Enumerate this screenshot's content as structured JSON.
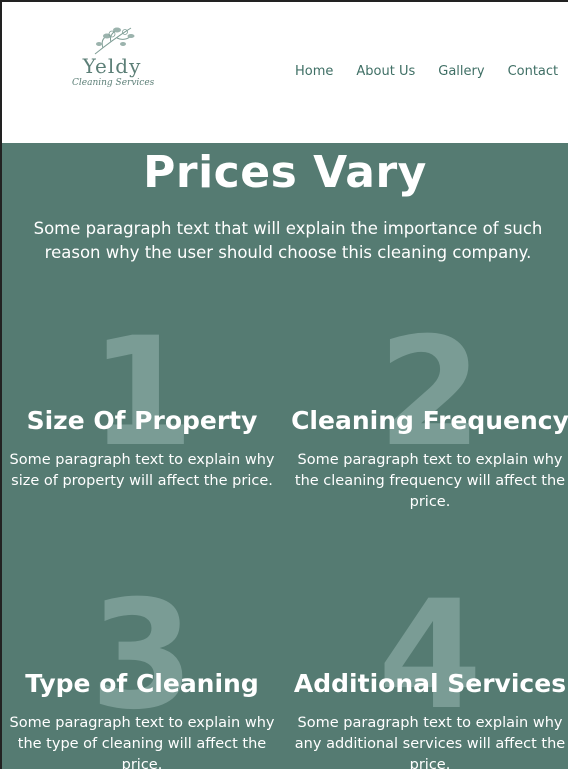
{
  "brand": {
    "name": "Yeldy",
    "tagline": "Cleaning Services"
  },
  "nav": {
    "items": [
      {
        "label": "Home"
      },
      {
        "label": "About Us"
      },
      {
        "label": "Gallery"
      },
      {
        "label": "Contact"
      }
    ]
  },
  "hero": {
    "title": "Prices Vary",
    "intro": "Some paragraph text that will explain the importance of such reason why the user should choose this cleaning company."
  },
  "factors": [
    {
      "number": "1",
      "title": "Size Of Property",
      "body": "Some paragraph text to explain why size of property will affect the price."
    },
    {
      "number": "2",
      "title": "Cleaning Frequency",
      "body": "Some paragraph text to explain why the cleaning frequency will affect the price."
    },
    {
      "number": "3",
      "title": "Type of Cleaning",
      "body": "Some paragraph text to explain why the type of cleaning will affect the price."
    },
    {
      "number": "4",
      "title": "Additional Services",
      "body": "Some paragraph text to explain why any additional services will affect the price."
    }
  ],
  "colors": {
    "brand_green": "#557b72",
    "nav_text": "#3f6f65",
    "number_watermark": "#7a9c95"
  },
  "icons": {
    "logo": "floral-sprig-icon"
  }
}
